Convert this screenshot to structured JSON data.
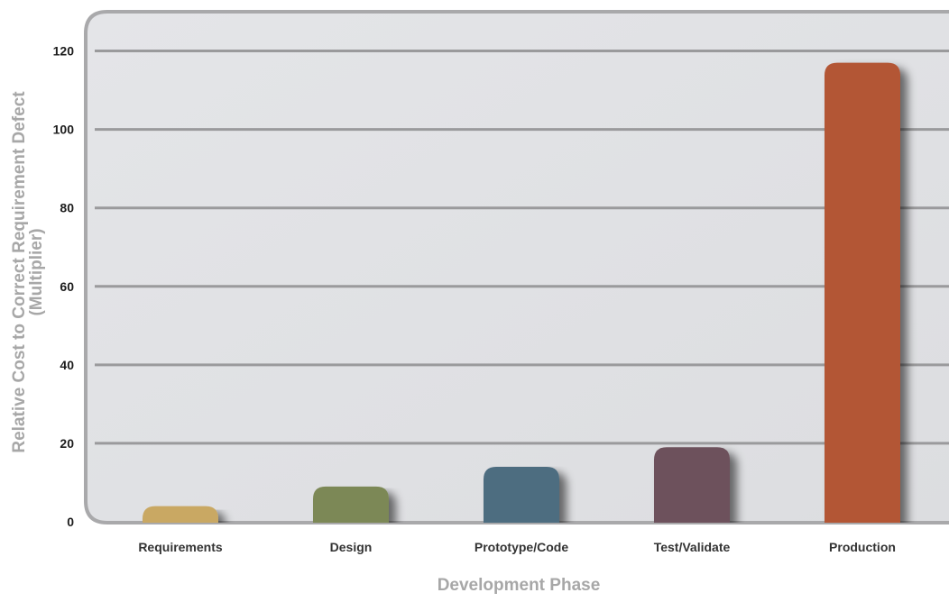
{
  "chart_data": {
    "type": "bar",
    "title": "",
    "xlabel": "Development Phase",
    "ylabel_lines": [
      "Relative Cost to Correct Requirement Defect",
      "(Multiplier)"
    ],
    "categories": [
      "Requirements",
      "Design",
      "Prototype/Code",
      "Test/Validate",
      "Production"
    ],
    "values": [
      4,
      9,
      14,
      19,
      117
    ],
    "bar_colors": [
      "#c9a864",
      "#7c8856",
      "#4d6d80",
      "#6d515b",
      "#b35636"
    ],
    "ylim": [
      0,
      130
    ],
    "yticks": [
      0,
      20,
      40,
      60,
      80,
      100,
      120
    ],
    "grid": true,
    "legend": "none"
  },
  "colors": {
    "plot_background": "#e1e2e5",
    "frame": "#a9a9ab",
    "gridline": "#9a9a9c"
  }
}
